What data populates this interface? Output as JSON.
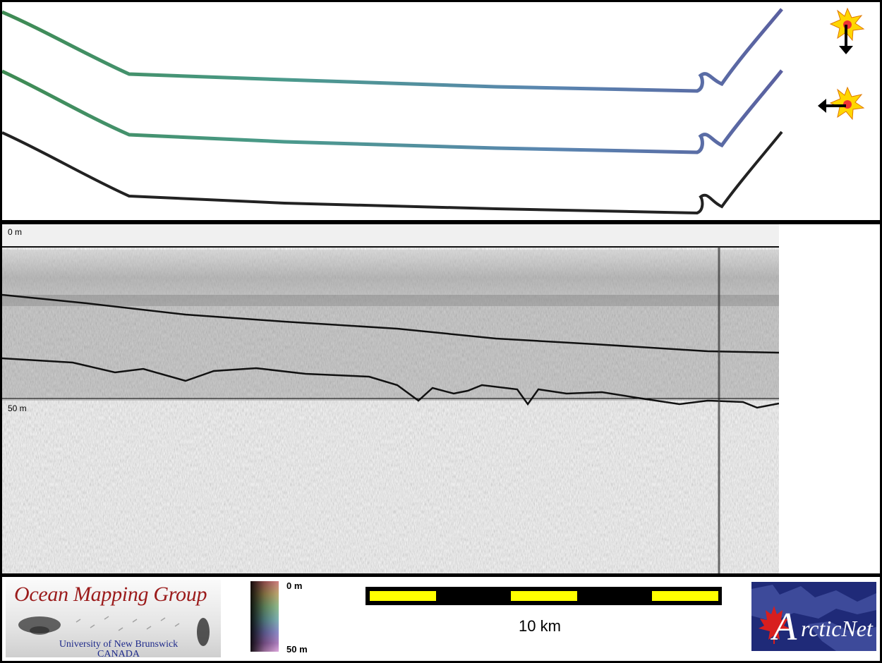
{
  "profile": {
    "depth_top_label": "0 m",
    "depth_mid_label": "50 m"
  },
  "footer": {
    "ogm_title": "Ocean Mapping Group",
    "ogm_university": "University of New Brunswick",
    "ogm_country": "CANADA",
    "colorbar_top": "0 m",
    "colorbar_bottom": "50 m",
    "scalebar_label": "10 km",
    "arcticnet_text": "rcticNet"
  },
  "icons": [
    "sun-arrow-down-icon",
    "sun-arrow-left-icon",
    "maple-leaf-icon"
  ],
  "colors": {
    "track_green": "#3f8a5a",
    "track_blue": "#5a6aa3",
    "track_black": "#222222",
    "scale_yellow": "#ffff00",
    "ogm_red": "#9b1b1b",
    "arcticnet_bg": "#1f2a78",
    "maple_red": "#d81e1e"
  }
}
